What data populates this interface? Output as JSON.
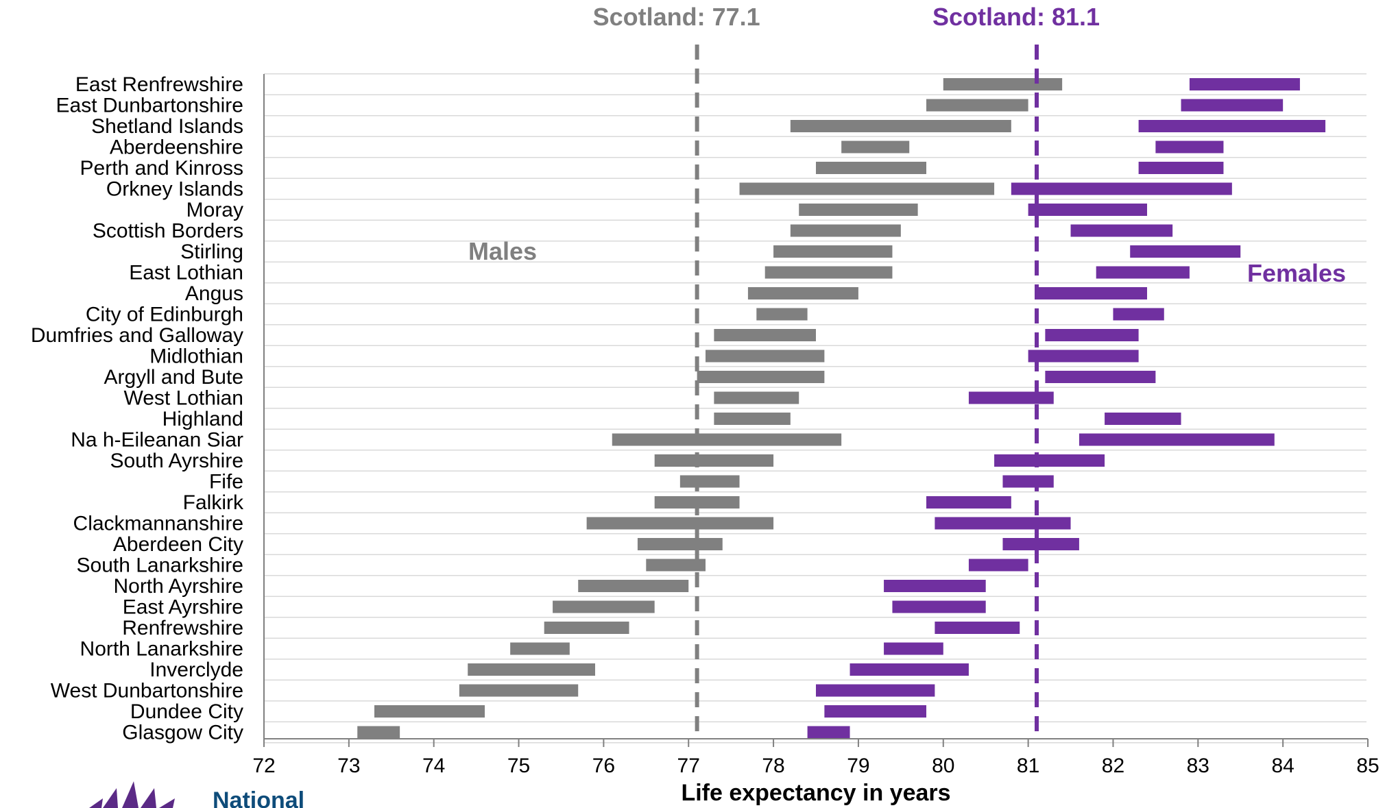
{
  "colors": {
    "males": "#808080",
    "females": "#7030a0",
    "axis": "#808080",
    "row_line": "#d9d9d9",
    "logo_text": "#0e4c7a"
  },
  "logo": {
    "text": "National",
    "icon": "thistle-flower-icon"
  },
  "chart_data": {
    "type": "bar",
    "orientation": "horizontal-range",
    "xlabel": "Life expectancy in years",
    "xlim": [
      72,
      85
    ],
    "xticks": [
      "72",
      "73",
      "74",
      "75",
      "76",
      "77",
      "78",
      "79",
      "80",
      "81",
      "82",
      "83",
      "84",
      "85"
    ],
    "grid": false,
    "reference_lines": [
      {
        "series": "Males",
        "value": 77.1,
        "label": "Scotland: 77.1"
      },
      {
        "series": "Females",
        "value": 81.1,
        "label": "Scotland: 81.1"
      }
    ],
    "categories": [
      "East Renfrewshire",
      "East Dunbartonshire",
      "Shetland Islands",
      "Aberdeenshire",
      "Perth and Kinross",
      "Orkney Islands",
      "Moray",
      "Scottish Borders",
      "Stirling",
      "East Lothian",
      "Angus",
      "City of Edinburgh",
      "Dumfries and Galloway",
      "Midlothian",
      "Argyll and Bute",
      "West Lothian",
      "Highland",
      "Na h-Eileanan Siar",
      "South Ayrshire",
      "Fife",
      "Falkirk",
      "Clackmannanshire",
      "Aberdeen City",
      "South Lanarkshire",
      "North Ayrshire",
      "East Ayrshire",
      "Renfrewshire",
      "North Lanarkshire",
      "Inverclyde",
      "West Dunbartonshire",
      "Dundee City",
      "Glasgow City"
    ],
    "series": [
      {
        "name": "Males",
        "ranges": [
          [
            80.0,
            81.4
          ],
          [
            79.8,
            81.0
          ],
          [
            78.2,
            80.8
          ],
          [
            78.8,
            79.6
          ],
          [
            78.5,
            79.8
          ],
          [
            77.6,
            80.6
          ],
          [
            78.3,
            79.7
          ],
          [
            78.2,
            79.5
          ],
          [
            78.0,
            79.4
          ],
          [
            77.9,
            79.4
          ],
          [
            77.7,
            79.0
          ],
          [
            77.8,
            78.4
          ],
          [
            77.3,
            78.5
          ],
          [
            77.2,
            78.6
          ],
          [
            77.1,
            78.6
          ],
          [
            77.3,
            78.3
          ],
          [
            77.3,
            78.2
          ],
          [
            76.1,
            78.8
          ],
          [
            76.6,
            78.0
          ],
          [
            76.9,
            77.6
          ],
          [
            76.6,
            77.6
          ],
          [
            75.8,
            78.0
          ],
          [
            76.4,
            77.4
          ],
          [
            76.5,
            77.2
          ],
          [
            75.7,
            77.0
          ],
          [
            75.4,
            76.6
          ],
          [
            75.3,
            76.3
          ],
          [
            74.9,
            75.6
          ],
          [
            74.4,
            75.9
          ],
          [
            74.3,
            75.7
          ],
          [
            73.3,
            74.6
          ],
          [
            73.1,
            73.6
          ]
        ]
      },
      {
        "name": "Females",
        "ranges": [
          [
            82.9,
            84.2
          ],
          [
            82.8,
            84.0
          ],
          [
            82.3,
            84.5
          ],
          [
            82.5,
            83.3
          ],
          [
            82.3,
            83.3
          ],
          [
            80.8,
            83.4
          ],
          [
            81.0,
            82.4
          ],
          [
            81.5,
            82.7
          ],
          [
            82.2,
            83.5
          ],
          [
            81.8,
            82.9
          ],
          [
            81.1,
            82.4
          ],
          [
            82.0,
            82.6
          ],
          [
            81.2,
            82.3
          ],
          [
            81.0,
            82.3
          ],
          [
            81.2,
            82.5
          ],
          [
            80.3,
            81.3
          ],
          [
            81.9,
            82.8
          ],
          [
            81.6,
            83.9
          ],
          [
            80.6,
            81.9
          ],
          [
            80.7,
            81.3
          ],
          [
            79.8,
            80.8
          ],
          [
            79.9,
            81.5
          ],
          [
            80.7,
            81.6
          ],
          [
            80.3,
            81.0
          ],
          [
            79.3,
            80.5
          ],
          [
            79.4,
            80.5
          ],
          [
            79.9,
            80.9
          ],
          [
            79.3,
            80.0
          ],
          [
            78.9,
            80.3
          ],
          [
            78.5,
            79.9
          ],
          [
            78.6,
            79.8
          ],
          [
            78.4,
            78.9
          ]
        ]
      }
    ]
  }
}
